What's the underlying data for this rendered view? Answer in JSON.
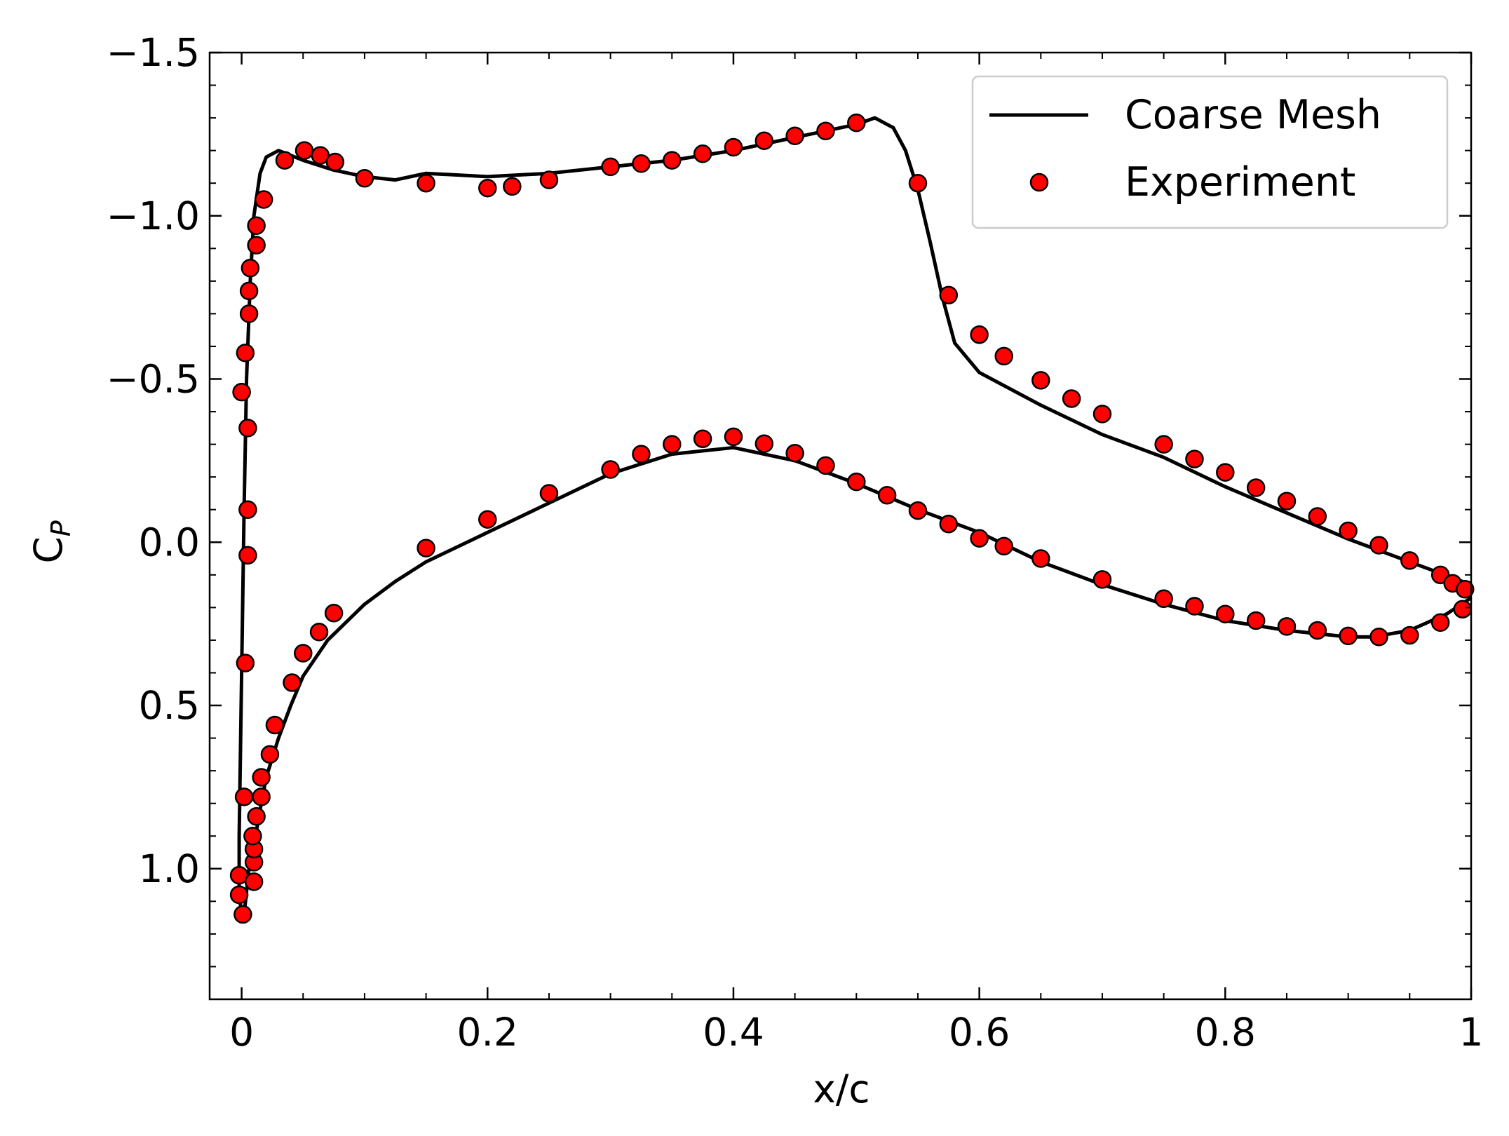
{
  "chart_data": {
    "type": "line",
    "xlabel": "x/c",
    "ylabel": {
      "text": "C",
      "subscript": "P"
    },
    "xlim": [
      -0.026,
      1.0
    ],
    "ylim": [
      -1.5,
      1.4
    ],
    "y_inverted": true,
    "xticks": [
      0,
      0.2,
      0.4,
      0.6,
      0.8,
      1
    ],
    "yticks": [
      {
        "value": -1.5,
        "label": "−1.5"
      },
      {
        "value": -1.0,
        "label": "−1.0"
      },
      {
        "value": -0.5,
        "label": "−0.5"
      },
      {
        "value": 0,
        "label": "0.0"
      },
      0.5,
      {
        "value": 1.0,
        "label": "1.0"
      }
    ],
    "xminorticks": [
      0.05,
      0.1,
      0.15,
      0.25,
      0.3,
      0.35,
      0.45,
      0.5,
      0.55,
      0.65,
      0.7,
      0.75,
      0.85,
      0.9,
      0.95
    ],
    "yminorticks": [
      -1.4,
      -1.3,
      -1.2,
      -1.1,
      -0.9,
      -0.8,
      -0.7,
      -0.6,
      -0.4,
      -0.3,
      -0.2,
      -0.1,
      0.1,
      0.2,
      0.3,
      0.4,
      0.6,
      0.7,
      0.8,
      0.9,
      1.1,
      1.2,
      1.3
    ],
    "tick_direction": "in",
    "legend": "upper right",
    "series": [
      {
        "name": "Coarse Mesh",
        "type": "line",
        "color": "#000000",
        "x": [
          1.0,
          0.95,
          0.9,
          0.85,
          0.8,
          0.75,
          0.7,
          0.65,
          0.6,
          0.58,
          0.57,
          0.56,
          0.55,
          0.54,
          0.53,
          0.515,
          0.5,
          0.45,
          0.4,
          0.35,
          0.3,
          0.25,
          0.2,
          0.15,
          0.125,
          0.1,
          0.075,
          0.05,
          0.03,
          0.02,
          0.015,
          0.01,
          0.007,
          0.004,
          0.002,
          0.0,
          -0.002,
          -0.002,
          0.002,
          0.006,
          0.01,
          0.015,
          0.02,
          0.03,
          0.04,
          0.05,
          0.07,
          0.1,
          0.125,
          0.15,
          0.2,
          0.25,
          0.3,
          0.35,
          0.4,
          0.45,
          0.5,
          0.55,
          0.6,
          0.65,
          0.7,
          0.75,
          0.8,
          0.85,
          0.9,
          0.92,
          0.95,
          0.98,
          1.0
        ],
        "values": [
          0.13,
          0.06,
          -0.01,
          -0.09,
          -0.17,
          -0.26,
          -0.33,
          -0.42,
          -0.52,
          -0.61,
          -0.75,
          -0.92,
          -1.08,
          -1.2,
          -1.27,
          -1.3,
          -1.28,
          -1.24,
          -1.2,
          -1.17,
          -1.15,
          -1.13,
          -1.12,
          -1.13,
          -1.11,
          -1.12,
          -1.14,
          -1.17,
          -1.2,
          -1.18,
          -1.13,
          -1.0,
          -0.8,
          -0.5,
          -0.1,
          0.4,
          0.9,
          1.1,
          1.14,
          1.0,
          0.93,
          0.82,
          0.72,
          0.6,
          0.5,
          0.41,
          0.3,
          0.19,
          0.12,
          0.06,
          -0.03,
          -0.12,
          -0.21,
          -0.27,
          -0.29,
          -0.25,
          -0.18,
          -0.1,
          -0.03,
          0.06,
          0.13,
          0.19,
          0.24,
          0.27,
          0.29,
          0.29,
          0.27,
          0.22,
          0.17
        ]
      },
      {
        "name": "Experiment",
        "type": "scatter",
        "color": "#ff0000",
        "edgecolor": "#000000",
        "x": [
          0,
          0.003,
          0.005,
          0.006,
          0.006,
          0.007,
          0.012,
          0.012,
          0.018,
          0.035,
          0.051,
          0.064,
          0.076,
          0.1,
          0.15,
          0.2,
          0.22,
          0.25,
          0.3,
          0.325,
          0.35,
          0.375,
          0.4,
          0.425,
          0.45,
          0.475,
          0.5,
          0.55,
          0.575,
          0.6,
          0.62,
          0.65,
          0.675,
          0.7,
          0.75,
          0.775,
          0.8,
          0.825,
          0.85,
          0.875,
          0.9,
          0.925,
          0.95,
          0.975,
          0.985,
          0.995,
          0.005,
          0.005,
          0.003,
          0.002,
          -0.002,
          -0.002,
          0.001,
          0.01,
          0.01,
          0.01,
          0.009,
          0.012,
          0.016,
          0.016,
          0.023,
          0.027,
          0.041,
          0.05,
          0.063,
          0.075,
          0.15,
          0.2,
          0.25,
          0.3,
          0.325,
          0.35,
          0.375,
          0.4,
          0.425,
          0.45,
          0.475,
          0.5,
          0.525,
          0.55,
          0.575,
          0.6,
          0.62,
          0.65,
          0.7,
          0.75,
          0.775,
          0.8,
          0.825,
          0.85,
          0.875,
          0.9,
          0.925,
          0.95,
          0.975,
          0.993
        ],
        "values": [
          -0.46,
          -0.58,
          -0.35,
          -0.7,
          -0.77,
          -0.84,
          -0.91,
          -0.97,
          -1.05,
          -1.17,
          -1.2,
          -1.185,
          -1.165,
          -1.115,
          -1.1,
          -1.085,
          -1.09,
          -1.11,
          -1.15,
          -1.16,
          -1.17,
          -1.19,
          -1.21,
          -1.23,
          -1.245,
          -1.26,
          -1.285,
          -1.1,
          -0.757,
          -0.636,
          -0.57,
          -0.496,
          -0.44,
          -0.393,
          -0.3,
          -0.255,
          -0.214,
          -0.167,
          -0.126,
          -0.079,
          -0.035,
          0.009,
          0.056,
          0.1,
          0.126,
          0.144,
          -0.1,
          0.04,
          0.37,
          0.78,
          1.02,
          1.08,
          1.14,
          1.04,
          0.98,
          0.94,
          0.9,
          0.84,
          0.78,
          0.72,
          0.65,
          0.56,
          0.43,
          0.34,
          0.275,
          0.217,
          0.018,
          -0.07,
          -0.15,
          -0.223,
          -0.27,
          -0.3,
          -0.317,
          -0.323,
          -0.302,
          -0.273,
          -0.235,
          -0.185,
          -0.144,
          -0.097,
          -0.056,
          -0.012,
          0.012,
          0.05,
          0.114,
          0.173,
          0.196,
          0.22,
          0.24,
          0.258,
          0.27,
          0.287,
          0.29,
          0.285,
          0.246,
          0.205
        ]
      }
    ]
  }
}
